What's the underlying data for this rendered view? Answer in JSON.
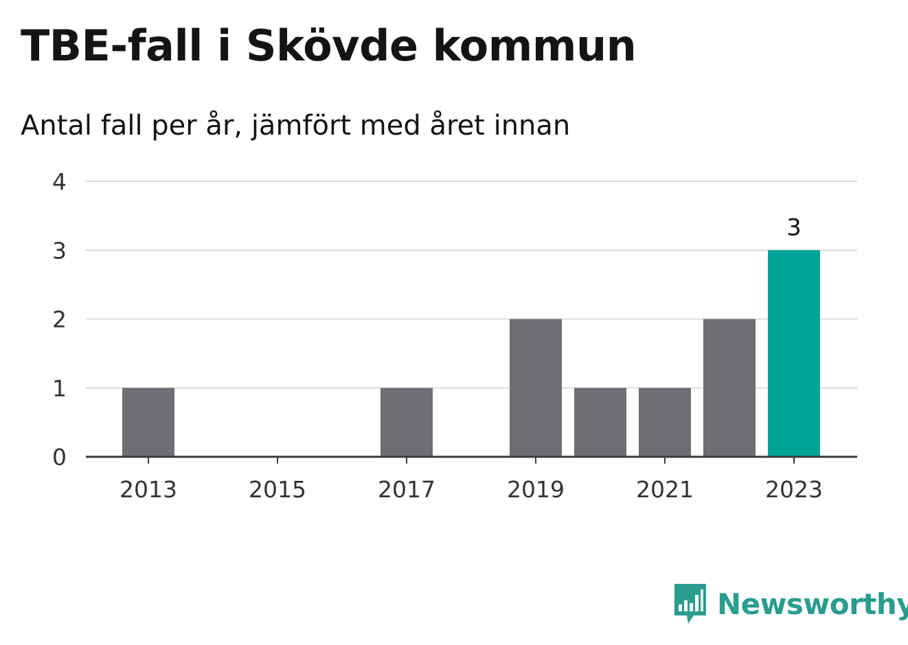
{
  "title": "TBE-fall i Skövde kommun",
  "subtitle": "Antal fall per år, jämfört med året innan",
  "brand": {
    "name": "Newsworthy",
    "color": "#2a9d8f",
    "icon": "bar-chart-bubble-icon"
  },
  "colors": {
    "bar": "#6e6e75",
    "highlight": "#00a497",
    "grid": "#dcdcdc",
    "axis": "#3a3a3a"
  },
  "chart_data": {
    "type": "bar",
    "categories": [
      "2013",
      "2014",
      "2015",
      "2016",
      "2017",
      "2018",
      "2019",
      "2020",
      "2021",
      "2022",
      "2023"
    ],
    "values": [
      1,
      0,
      0,
      0,
      1,
      0,
      2,
      1,
      1,
      2,
      3
    ],
    "highlight_index": 10,
    "data_labels": [
      {
        "index": 10,
        "text": "3"
      }
    ],
    "x_tick_labels": [
      "2013",
      "2015",
      "2017",
      "2019",
      "2021",
      "2023"
    ],
    "y_ticks": [
      0,
      1,
      2,
      3,
      4
    ],
    "ylim": [
      0,
      4
    ],
    "grid": true,
    "title": "TBE-fall i Skövde kommun",
    "subtitle": "Antal fall per år, jämfört med året innan",
    "xlabel": "",
    "ylabel": ""
  }
}
